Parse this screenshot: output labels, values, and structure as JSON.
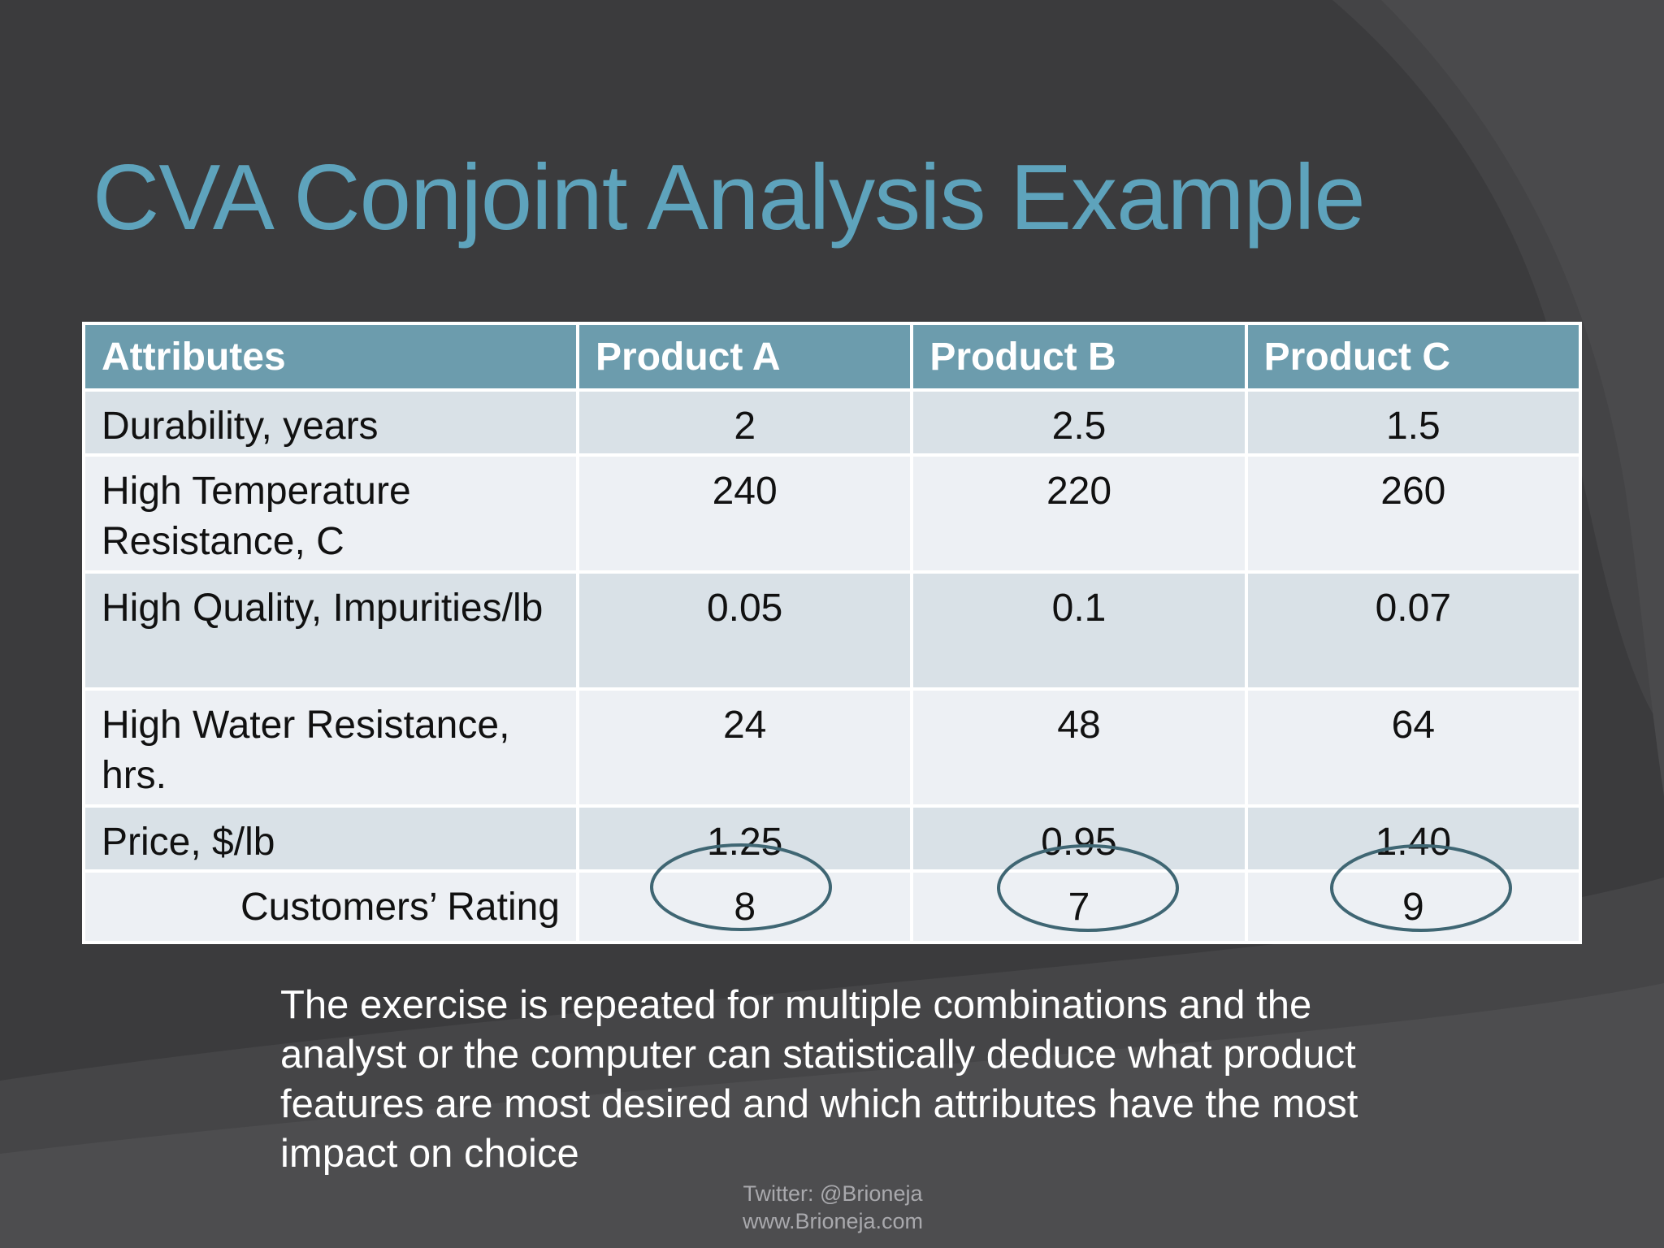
{
  "slide": {
    "title": "CVA Conjoint Analysis Example",
    "body_text": "The exercise is repeated for multiple combinations and the analyst or the computer can statistically deduce what product features are most desired and which attributes have the most impact on choice",
    "footer_line1": "Twitter: @Brioneja",
    "footer_line2": "www.Brioneja.com"
  },
  "table": {
    "headers": [
      "Attributes",
      "Product A",
      "Product B",
      "Product C"
    ],
    "rows": [
      {
        "attribute": "Durability, years",
        "a": "2",
        "b": "2.5",
        "c": "1.5"
      },
      {
        "attribute": "High Temperature Resistance, C",
        "a": "240",
        "b": "220",
        "c": "260"
      },
      {
        "attribute": "High Quality, Impurities/lb",
        "a": "0.05",
        "b": "0.1",
        "c": "0.07"
      },
      {
        "attribute": "High Water Resistance, hrs.",
        "a": "24",
        "b": "48",
        "c": "64"
      },
      {
        "attribute": "Price, $/lb",
        "a": "1.25",
        "b": "0.95",
        "c": "1.40"
      },
      {
        "attribute": "Customers’ Rating",
        "a": "8",
        "b": "7",
        "c": "9"
      }
    ]
  },
  "colors": {
    "background": "#3b3b3d",
    "title": "#5ea3bc",
    "header_fill": "#6c9cad",
    "band_fill": "#d9e1e7",
    "plain_fill": "#edf0f4",
    "ellipse_stroke": "#3f6673"
  }
}
